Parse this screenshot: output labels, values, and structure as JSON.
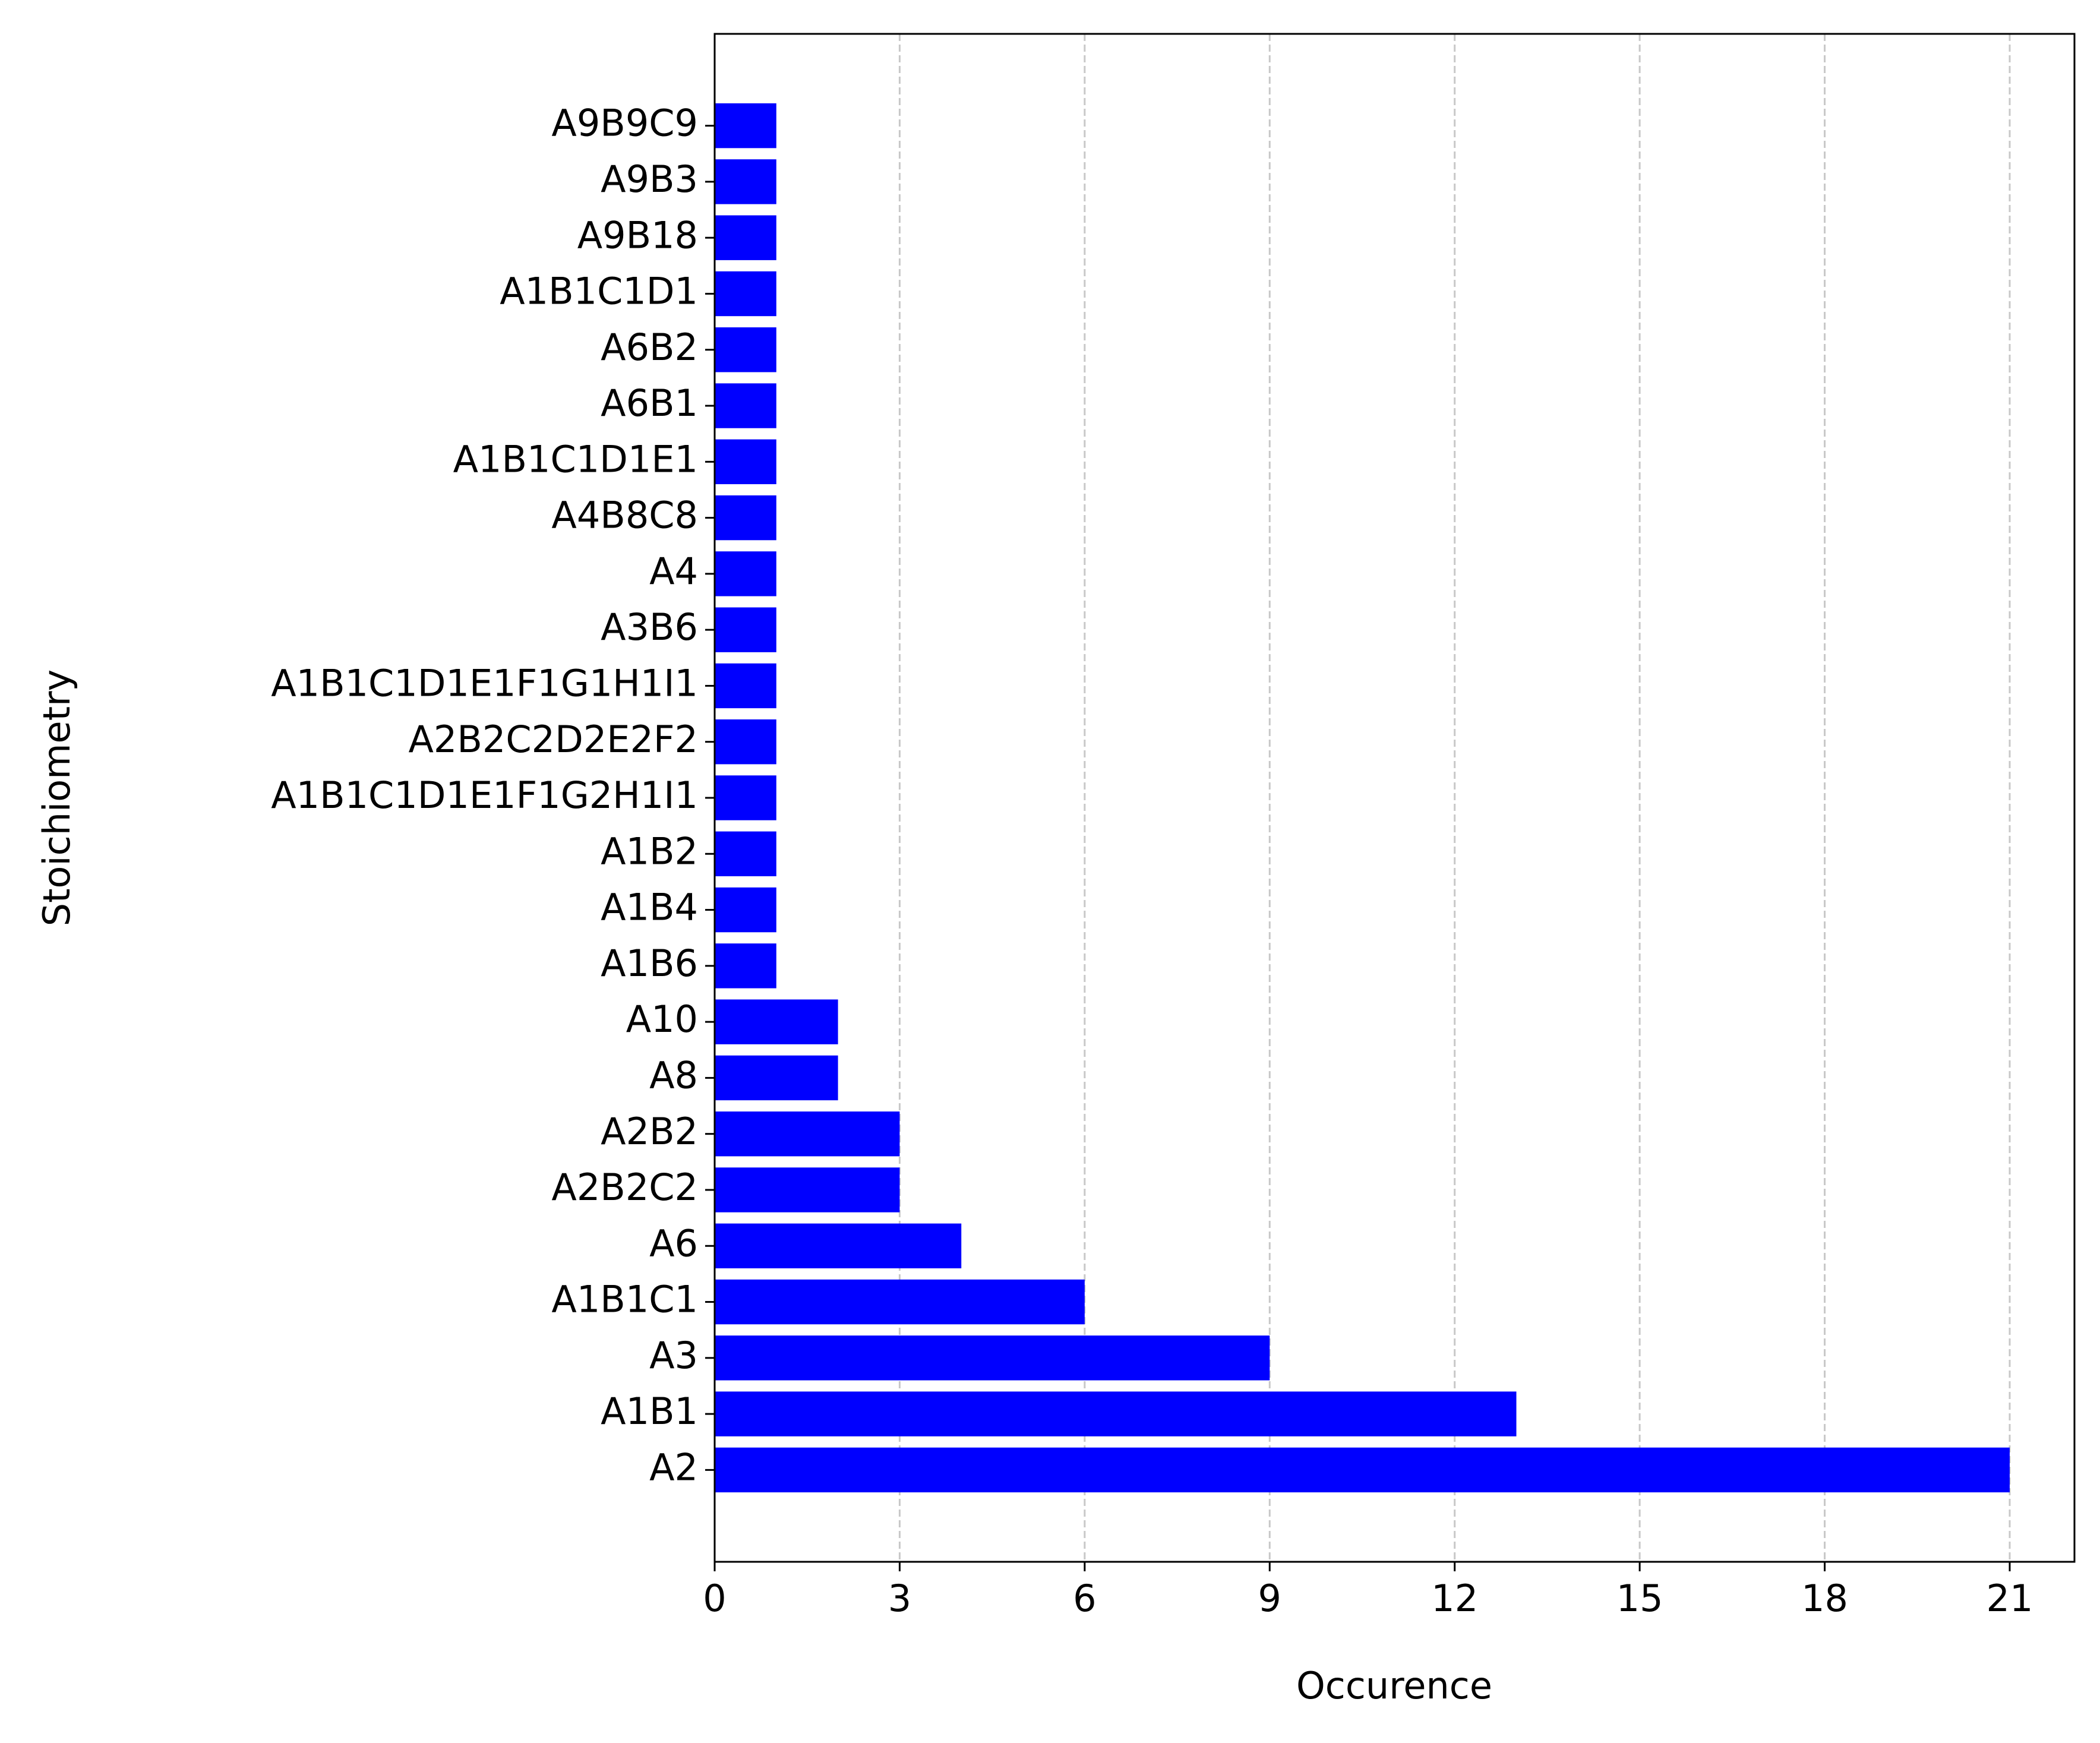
{
  "chart_data": {
    "type": "barh",
    "x_label": "Occurence",
    "y_label": "Stoichiometry",
    "categories": [
      "A2",
      "A1B1",
      "A3",
      "A1B1C1",
      "A6",
      "A2B2C2",
      "A2B2",
      "A8",
      "A10",
      "A1B6",
      "A1B4",
      "A1B2",
      "A1B1C1D1E1F1G2H1I1",
      "A2B2C2D2E2F2",
      "A1B1C1D1E1F1G1H1I1",
      "A3B6",
      "A4",
      "A4B8C8",
      "A1B1C1D1E1",
      "A6B1",
      "A6B2",
      "A1B1C1D1",
      "A9B18",
      "A9B3",
      "A9B9C9"
    ],
    "values": [
      21,
      13,
      9,
      6,
      4,
      3,
      3,
      2,
      2,
      1,
      1,
      1,
      1,
      1,
      1,
      1,
      1,
      1,
      1,
      1,
      1,
      1,
      1,
      1,
      1
    ],
    "color": "#0000ff",
    "xlim": [
      0,
      22.05
    ],
    "xticks": [
      0,
      3,
      6,
      9,
      12,
      15,
      18,
      21
    ],
    "ylim": [
      -1.64,
      25.64
    ],
    "grid": true
  }
}
